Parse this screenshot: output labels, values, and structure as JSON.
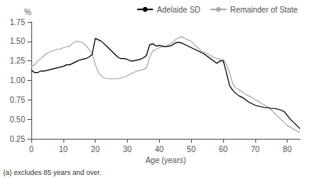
{
  "chart_data": {
    "type": "line",
    "xlabel": "Age (years)",
    "ylabel": "%",
    "footnote": "(a) excludes 85 years and over.",
    "xlim": [
      0,
      84
    ],
    "xticks": [
      0,
      10,
      20,
      30,
      40,
      50,
      60,
      70,
      80
    ],
    "ylim": [
      0.25,
      1.75
    ],
    "yticks": [
      0.25,
      {
        "value": 0.5,
        "label": "0.50"
      },
      0.75,
      {
        "value": 1,
        "label": "1.00"
      },
      1.25,
      {
        "value": 1.5,
        "label": "1.50"
      },
      1.75
    ],
    "grid": false,
    "legend": "upper right",
    "x": [
      0,
      1,
      2,
      3,
      4,
      5,
      6,
      7,
      8,
      9,
      10,
      11,
      12,
      13,
      14,
      15,
      16,
      17,
      18,
      19,
      20,
      21,
      22,
      23,
      24,
      25,
      26,
      27,
      28,
      29,
      30,
      31,
      32,
      33,
      34,
      35,
      36,
      37,
      38,
      39,
      40,
      41,
      42,
      43,
      44,
      45,
      46,
      47,
      48,
      49,
      50,
      51,
      52,
      53,
      54,
      55,
      56,
      57,
      58,
      59,
      60,
      61,
      62,
      63,
      64,
      65,
      66,
      67,
      68,
      69,
      70,
      71,
      72,
      73,
      74,
      75,
      76,
      77,
      78,
      79,
      80,
      81,
      82,
      83,
      84
    ],
    "series": [
      {
        "name": "Adelaide SD",
        "color": "#000000",
        "values": [
          1.13,
          1.1,
          1.1,
          1.12,
          1.12,
          1.13,
          1.14,
          1.15,
          1.16,
          1.17,
          1.18,
          1.2,
          1.2,
          1.22,
          1.24,
          1.26,
          1.27,
          1.28,
          1.3,
          1.33,
          1.54,
          1.52,
          1.5,
          1.46,
          1.42,
          1.38,
          1.34,
          1.3,
          1.28,
          1.28,
          1.27,
          1.25,
          1.25,
          1.26,
          1.27,
          1.29,
          1.32,
          1.46,
          1.47,
          1.44,
          1.45,
          1.44,
          1.43,
          1.44,
          1.45,
          1.48,
          1.49,
          1.48,
          1.46,
          1.44,
          1.42,
          1.4,
          1.38,
          1.36,
          1.34,
          1.31,
          1.28,
          1.25,
          1.22,
          1.25,
          1.25,
          1.1,
          0.93,
          0.87,
          0.83,
          0.8,
          0.78,
          0.75,
          0.72,
          0.7,
          0.68,
          0.67,
          0.66,
          0.65,
          0.65,
          0.64,
          0.64,
          0.63,
          0.62,
          0.6,
          0.55,
          0.5,
          0.46,
          0.42,
          0.38
        ]
      },
      {
        "name": "Remainder of State",
        "color": "#aaaaaa",
        "values": [
          1.18,
          1.2,
          1.25,
          1.28,
          1.32,
          1.35,
          1.37,
          1.38,
          1.4,
          1.4,
          1.42,
          1.43,
          1.44,
          1.48,
          1.5,
          1.5,
          1.48,
          1.45,
          1.4,
          1.35,
          1.2,
          1.1,
          1.05,
          1.03,
          1.02,
          1.02,
          1.02,
          1.02,
          1.03,
          1.04,
          1.06,
          1.08,
          1.1,
          1.12,
          1.13,
          1.14,
          1.16,
          1.3,
          1.38,
          1.4,
          1.42,
          1.43,
          1.44,
          1.46,
          1.48,
          1.52,
          1.55,
          1.56,
          1.54,
          1.52,
          1.5,
          1.46,
          1.42,
          1.38,
          1.36,
          1.34,
          1.32,
          1.3,
          1.28,
          1.27,
          1.27,
          1.2,
          1.1,
          0.95,
          0.9,
          0.88,
          0.85,
          0.82,
          0.8,
          0.78,
          0.75,
          0.73,
          0.7,
          0.68,
          0.65,
          0.62,
          0.58,
          0.54,
          0.5,
          0.46,
          0.42,
          0.4,
          0.37,
          0.35,
          0.33
        ]
      }
    ]
  }
}
